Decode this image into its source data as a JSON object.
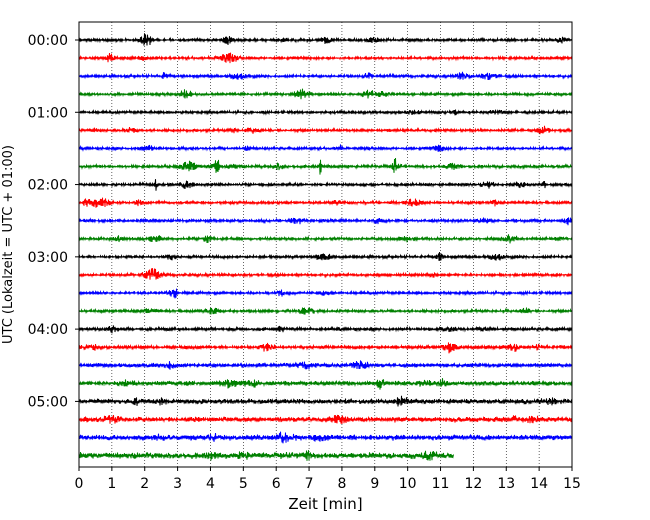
{
  "chart_data": {
    "type": "line",
    "title": "",
    "xlabel": "Zeit  [min]",
    "ylabel": "UTC (Lokalzeit = UTC + 01:00)",
    "xlim": [
      0,
      15
    ],
    "x_ticks": [
      "0",
      "1",
      "2",
      "3",
      "4",
      "5",
      "6",
      "7",
      "8",
      "9",
      "10",
      "11",
      "12",
      "13",
      "14",
      "15"
    ],
    "y_ticks": [
      "00:00",
      "01:00",
      "02:00",
      "03:00",
      "04:00",
      "05:00"
    ],
    "grid": "vertical dotted at every minute",
    "legend": "none",
    "trace_colors": [
      "#000000",
      "#ff0000",
      "#0000ff",
      "#008000"
    ],
    "traces": [
      {
        "start": "00:00",
        "color": "#000000",
        "end_min": 15
      },
      {
        "start": "00:15",
        "color": "#ff0000",
        "end_min": 15
      },
      {
        "start": "00:30",
        "color": "#0000ff",
        "end_min": 15
      },
      {
        "start": "00:45",
        "color": "#008000",
        "end_min": 15
      },
      {
        "start": "01:00",
        "color": "#000000",
        "end_min": 15
      },
      {
        "start": "01:15",
        "color": "#ff0000",
        "end_min": 15
      },
      {
        "start": "01:30",
        "color": "#0000ff",
        "end_min": 15
      },
      {
        "start": "01:45",
        "color": "#008000",
        "end_min": 15
      },
      {
        "start": "02:00",
        "color": "#000000",
        "end_min": 15
      },
      {
        "start": "02:15",
        "color": "#ff0000",
        "end_min": 15
      },
      {
        "start": "02:30",
        "color": "#0000ff",
        "end_min": 15
      },
      {
        "start": "02:45",
        "color": "#008000",
        "end_min": 15
      },
      {
        "start": "03:00",
        "color": "#000000",
        "end_min": 15
      },
      {
        "start": "03:15",
        "color": "#ff0000",
        "end_min": 15
      },
      {
        "start": "03:30",
        "color": "#0000ff",
        "end_min": 15
      },
      {
        "start": "03:45",
        "color": "#008000",
        "end_min": 15
      },
      {
        "start": "04:00",
        "color": "#000000",
        "end_min": 15
      },
      {
        "start": "04:15",
        "color": "#ff0000",
        "end_min": 15
      },
      {
        "start": "04:30",
        "color": "#0000ff",
        "end_min": 15
      },
      {
        "start": "04:45",
        "color": "#008000",
        "end_min": 15
      },
      {
        "start": "05:00",
        "color": "#000000",
        "end_min": 15
      },
      {
        "start": "05:15",
        "color": "#ff0000",
        "end_min": 15
      },
      {
        "start": "05:30",
        "color": "#0000ff",
        "end_min": 15
      },
      {
        "start": "05:45",
        "color": "#008000",
        "end_min": 11.4
      }
    ]
  }
}
